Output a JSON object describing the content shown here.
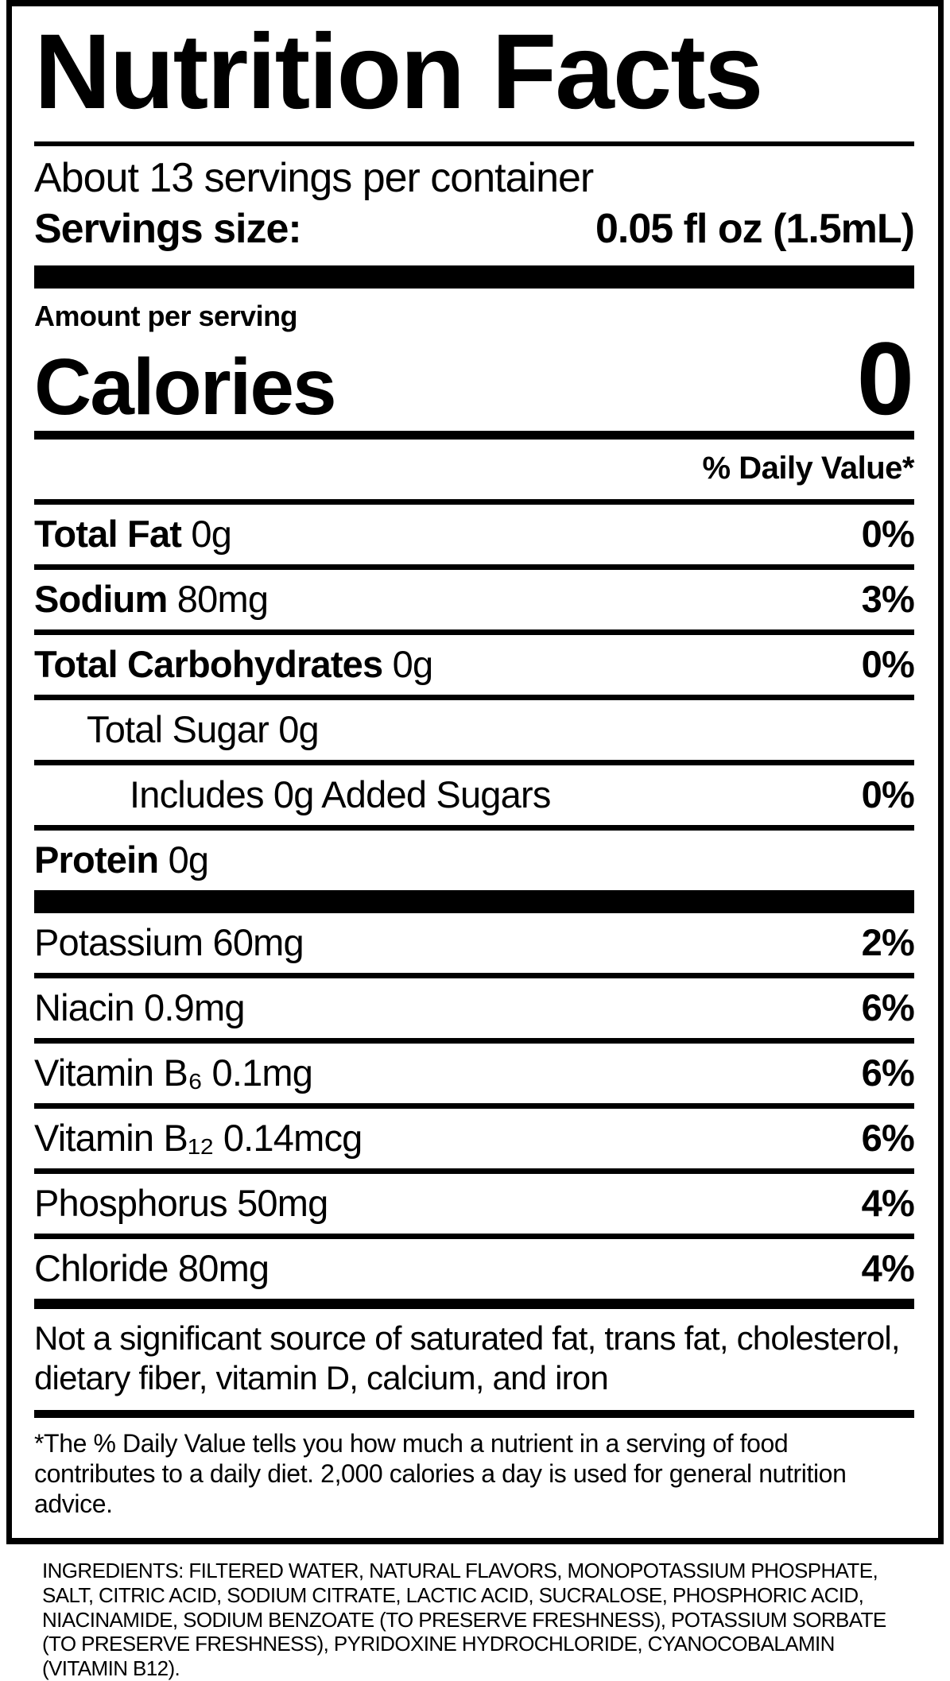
{
  "label": {
    "title": "Nutrition Facts",
    "servings_per_container": "About 13 servings per container",
    "serving_size_label": "Servings size:",
    "serving_size_value": "0.05 fl oz (1.5mL)",
    "amount_per_serving": "Amount per serving",
    "calories_label": "Calories",
    "calories_value": "0",
    "daily_value_header": "% Daily Value*",
    "main_rows": [
      {
        "bold": "Total Fat",
        "rest": " 0g",
        "pct": "0%"
      },
      {
        "bold": "Sodium",
        "rest": " 80mg",
        "pct": "3%"
      },
      {
        "bold": "Total Carbohydrates",
        "rest": " 0g",
        "pct": "0%"
      },
      {
        "bold": "",
        "rest": "Total Sugar 0g",
        "pct": ""
      },
      {
        "bold": "",
        "rest": "Includes 0g Added Sugars",
        "pct": "0%"
      },
      {
        "bold": "Protein",
        "rest": " 0g",
        "pct": ""
      }
    ],
    "micro_rows": [
      {
        "label": "Potassium 60mg",
        "pct": "2%"
      },
      {
        "label": "Niacin 0.9mg",
        "pct": "6%"
      },
      {
        "label": "Vitamin B₆ 0.1mg",
        "pct": "6%"
      },
      {
        "label": "Vitamin B₁₂ 0.14mcg",
        "pct": "6%"
      },
      {
        "label": "Phosphorus 50mg",
        "pct": "4%"
      },
      {
        "label": "Chloride 80mg",
        "pct": "4%"
      }
    ],
    "not_significant": "Not a significant source of saturated fat, trans fat, cholesterol, dietary fiber, vitamin D, calcium, and iron",
    "footnote": "*The % Daily Value tells you how much a nutrient in a serving of food contributes to a daily diet. 2,000 calories a day is used for general nutrition advice.",
    "ingredients": "INGREDIENTS: FILTERED WATER, NATURAL FLAVORS, MONOPOTASSIUM PHOSPHATE, SALT, CITRIC ACID, SODIUM CITRATE, LACTIC ACID, SUCRALOSE, PHOSPHORIC ACID, NIACINAMIDE, SODIUM BENZOATE (TO PRESERVE FRESHNESS), POTASSIUM SORBATE (TO PRESERVE FRESHNESS), PYRIDOXINE HYDROCHLORIDE, CYANOCOBALAMIN (VITAMIN B12)."
  },
  "colors": {
    "text": "#000000",
    "background": "#ffffff",
    "border": "#000000"
  }
}
